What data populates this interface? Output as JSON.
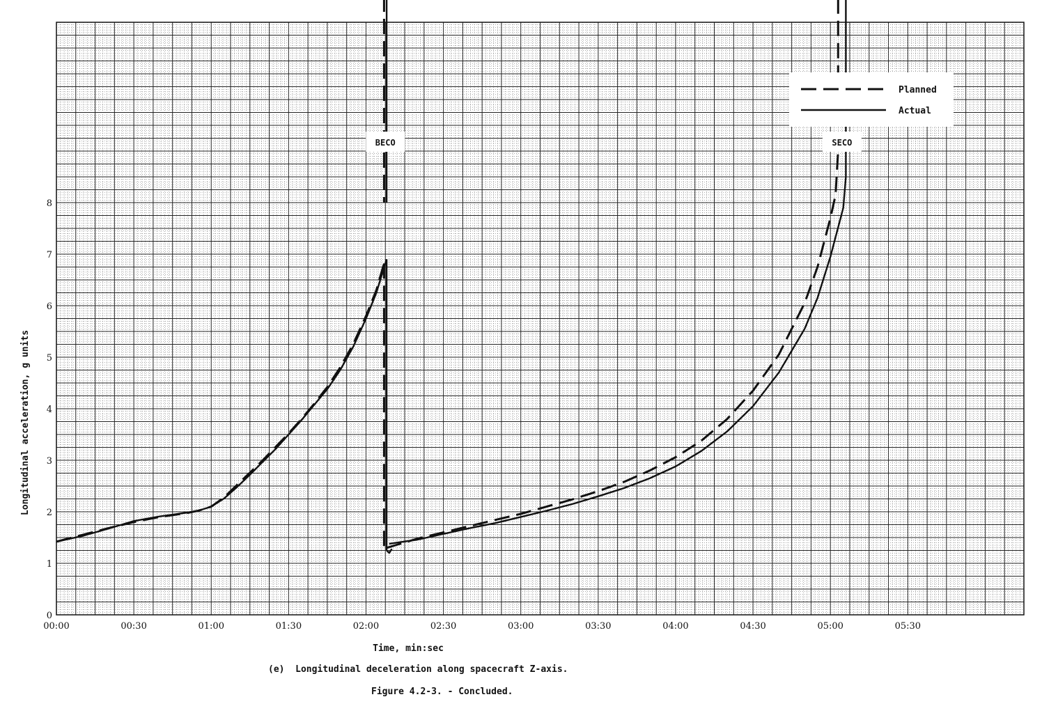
{
  "chart_data": {
    "type": "line",
    "xlabel": "Time, min:sec",
    "ylabel": "Longitudinal acceleration, g units",
    "xlim": [
      0,
      375
    ],
    "ylim": [
      0,
      11.5
    ],
    "x_ticks": [
      {
        "value": 0,
        "label": "00:00"
      },
      {
        "value": 30,
        "label": "00:30"
      },
      {
        "value": 60,
        "label": "01:00"
      },
      {
        "value": 90,
        "label": "01:30"
      },
      {
        "value": 120,
        "label": "02:00"
      },
      {
        "value": 150,
        "label": "02:30"
      },
      {
        "value": 180,
        "label": "03:00"
      },
      {
        "value": 210,
        "label": "03:30"
      },
      {
        "value": 240,
        "label": "04:00"
      },
      {
        "value": 270,
        "label": "04:30"
      },
      {
        "value": 300,
        "label": "05:00"
      },
      {
        "value": 330,
        "label": "05:30"
      }
    ],
    "y_ticks": [
      0,
      1,
      2,
      3,
      4,
      5,
      6,
      7,
      8
    ],
    "grid": true,
    "legend_position": "top-right",
    "series": [
      {
        "name": "Planned",
        "style": "dashed",
        "segments": [
          [
            [
              0,
              1.42
            ],
            [
              10,
              1.55
            ],
            [
              20,
              1.68
            ],
            [
              30,
              1.8
            ],
            [
              40,
              1.9
            ],
            [
              50,
              1.97
            ],
            [
              55,
              2.02
            ],
            [
              60,
              2.1
            ],
            [
              65,
              2.28
            ],
            [
              70,
              2.52
            ],
            [
              75,
              2.76
            ],
            [
              80,
              3.0
            ],
            [
              85,
              3.26
            ],
            [
              90,
              3.52
            ],
            [
              95,
              3.8
            ],
            [
              100,
              4.1
            ],
            [
              105,
              4.42
            ],
            [
              110,
              4.8
            ],
            [
              115,
              5.25
            ],
            [
              120,
              5.8
            ],
            [
              124,
              6.3
            ],
            [
              127,
              6.82
            ]
          ],
          [
            [
              127,
              12
            ],
            [
              127,
              8.0
            ]
          ],
          [
            [
              127,
              6.82
            ],
            [
              127,
              1.3
            ]
          ],
          [
            [
              128,
              1.3
            ],
            [
              140,
              1.48
            ],
            [
              150,
              1.6
            ],
            [
              160,
              1.72
            ],
            [
              170,
              1.84
            ],
            [
              180,
              1.96
            ],
            [
              190,
              2.1
            ],
            [
              200,
              2.24
            ],
            [
              210,
              2.4
            ],
            [
              220,
              2.58
            ],
            [
              230,
              2.8
            ],
            [
              240,
              3.06
            ],
            [
              250,
              3.38
            ],
            [
              260,
              3.8
            ],
            [
              270,
              4.35
            ],
            [
              280,
              5.05
            ],
            [
              290,
              6.05
            ],
            [
              295,
              6.75
            ],
            [
              300,
              7.7
            ],
            [
              302,
              8.15
            ],
            [
              303,
              9.0
            ],
            [
              303,
              12
            ]
          ]
        ]
      },
      {
        "name": "Actual",
        "style": "solid",
        "segments": [
          [
            [
              0,
              1.42
            ],
            [
              10,
              1.53
            ],
            [
              20,
              1.67
            ],
            [
              30,
              1.82
            ],
            [
              40,
              1.91
            ],
            [
              50,
              1.98
            ],
            [
              55,
              2.02
            ],
            [
              60,
              2.1
            ],
            [
              65,
              2.26
            ],
            [
              70,
              2.48
            ],
            [
              75,
              2.72
            ],
            [
              80,
              2.97
            ],
            [
              85,
              3.22
            ],
            [
              90,
              3.5
            ],
            [
              95,
              3.78
            ],
            [
              100,
              4.08
            ],
            [
              105,
              4.38
            ],
            [
              110,
              4.75
            ],
            [
              115,
              5.2
            ],
            [
              120,
              5.75
            ],
            [
              124,
              6.25
            ],
            [
              128,
              6.9
            ]
          ],
          [
            [
              128,
              12
            ],
            [
              128,
              8.0
            ]
          ],
          [
            [
              128,
              6.9
            ],
            [
              128,
              1.25
            ]
          ],
          [
            [
              128,
              1.25
            ],
            [
              129,
              1.2
            ],
            [
              130,
              1.28
            ]
          ],
          [
            [
              129,
              1.38
            ],
            [
              140,
              1.46
            ],
            [
              150,
              1.57
            ],
            [
              160,
              1.68
            ],
            [
              170,
              1.78
            ],
            [
              180,
              1.9
            ],
            [
              190,
              2.02
            ],
            [
              200,
              2.15
            ],
            [
              210,
              2.3
            ],
            [
              220,
              2.46
            ],
            [
              230,
              2.65
            ],
            [
              240,
              2.88
            ],
            [
              250,
              3.18
            ],
            [
              260,
              3.56
            ],
            [
              270,
              4.05
            ],
            [
              280,
              4.7
            ],
            [
              290,
              5.55
            ],
            [
              295,
              6.15
            ],
            [
              300,
              6.95
            ],
            [
              305,
              7.9
            ],
            [
              306,
              8.5
            ],
            [
              306,
              12
            ]
          ]
        ]
      }
    ],
    "annotations": [
      {
        "text": "BECO",
        "x": 127.5
      },
      {
        "text": "SECO",
        "x": 304.5
      }
    ]
  },
  "captions": {
    "subfigure": "(e)  Longitudinal deceleration along spacecraft Z-axis.",
    "figure": "Figure 4.2-3. - Concluded."
  }
}
